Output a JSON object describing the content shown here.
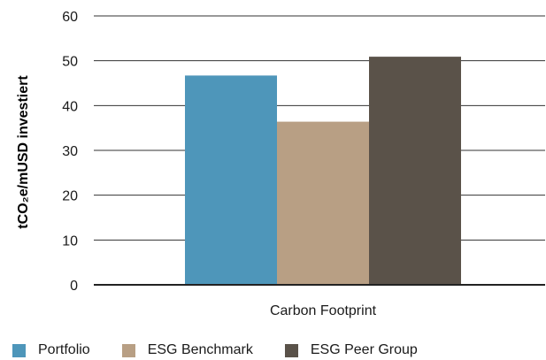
{
  "chart_data": {
    "type": "bar",
    "categories": [
      "Carbon Footprint"
    ],
    "series": [
      {
        "name": "Portfolio",
        "values": [
          46.7
        ],
        "color": "#4e96ba"
      },
      {
        "name": "ESG Benchmark",
        "values": [
          36.4
        ],
        "color": "#b89f84"
      },
      {
        "name": "ESG Peer Group",
        "values": [
          50.9
        ],
        "color": "#5a5249"
      }
    ],
    "title": "",
    "xlabel": "",
    "ylabel": "tCO₂e/mUSD investiert",
    "ylim": [
      0,
      60
    ],
    "yticks": [
      0,
      10,
      20,
      30,
      40,
      50,
      60
    ],
    "grid": true,
    "legend_position": "bottom-left"
  }
}
